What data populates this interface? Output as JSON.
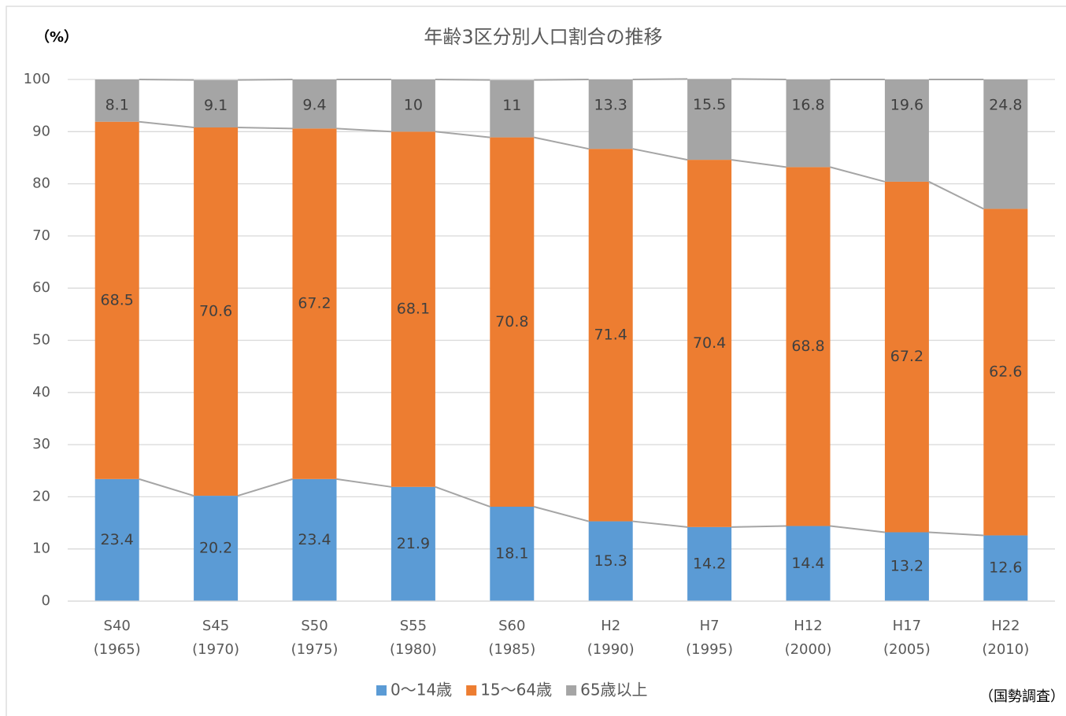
{
  "chart_data": {
    "type": "stacked_bar",
    "title": "年齢3区分別人口割合の推移",
    "y_unit_label": "（%）",
    "source": "（国勢調査）",
    "categories": [
      [
        "S40",
        "(1965)"
      ],
      [
        "S45",
        "(1970)"
      ],
      [
        "S50",
        "(1975)"
      ],
      [
        "S55",
        "(1980)"
      ],
      [
        "S60",
        "(1985)"
      ],
      [
        "H2",
        "(1990)"
      ],
      [
        "H7",
        "(1995)"
      ],
      [
        "H12",
        "(2000)"
      ],
      [
        "H17",
        "(2005)"
      ],
      [
        "H22",
        "(2010)"
      ]
    ],
    "series": [
      {
        "name": "0〜14歳",
        "color": "#5b9bd5",
        "values": [
          23.4,
          20.2,
          23.4,
          21.9,
          18.1,
          15.3,
          14.2,
          14.4,
          13.2,
          12.6
        ]
      },
      {
        "name": "15〜64歳",
        "color": "#ed7d31",
        "values": [
          68.5,
          70.6,
          67.2,
          68.1,
          70.8,
          71.4,
          70.4,
          68.8,
          67.2,
          62.6
        ]
      },
      {
        "name": "65歳以上",
        "color": "#a5a5a5",
        "values": [
          8.1,
          9.1,
          9.4,
          10,
          11,
          13.3,
          15.5,
          16.8,
          19.6,
          24.8
        ]
      }
    ],
    "ylim": [
      0,
      100
    ],
    "yticks": [
      0,
      10,
      20,
      30,
      40,
      50,
      60,
      70,
      80,
      90,
      100
    ],
    "grid": true,
    "series_lines": true,
    "legend": "bottom"
  }
}
